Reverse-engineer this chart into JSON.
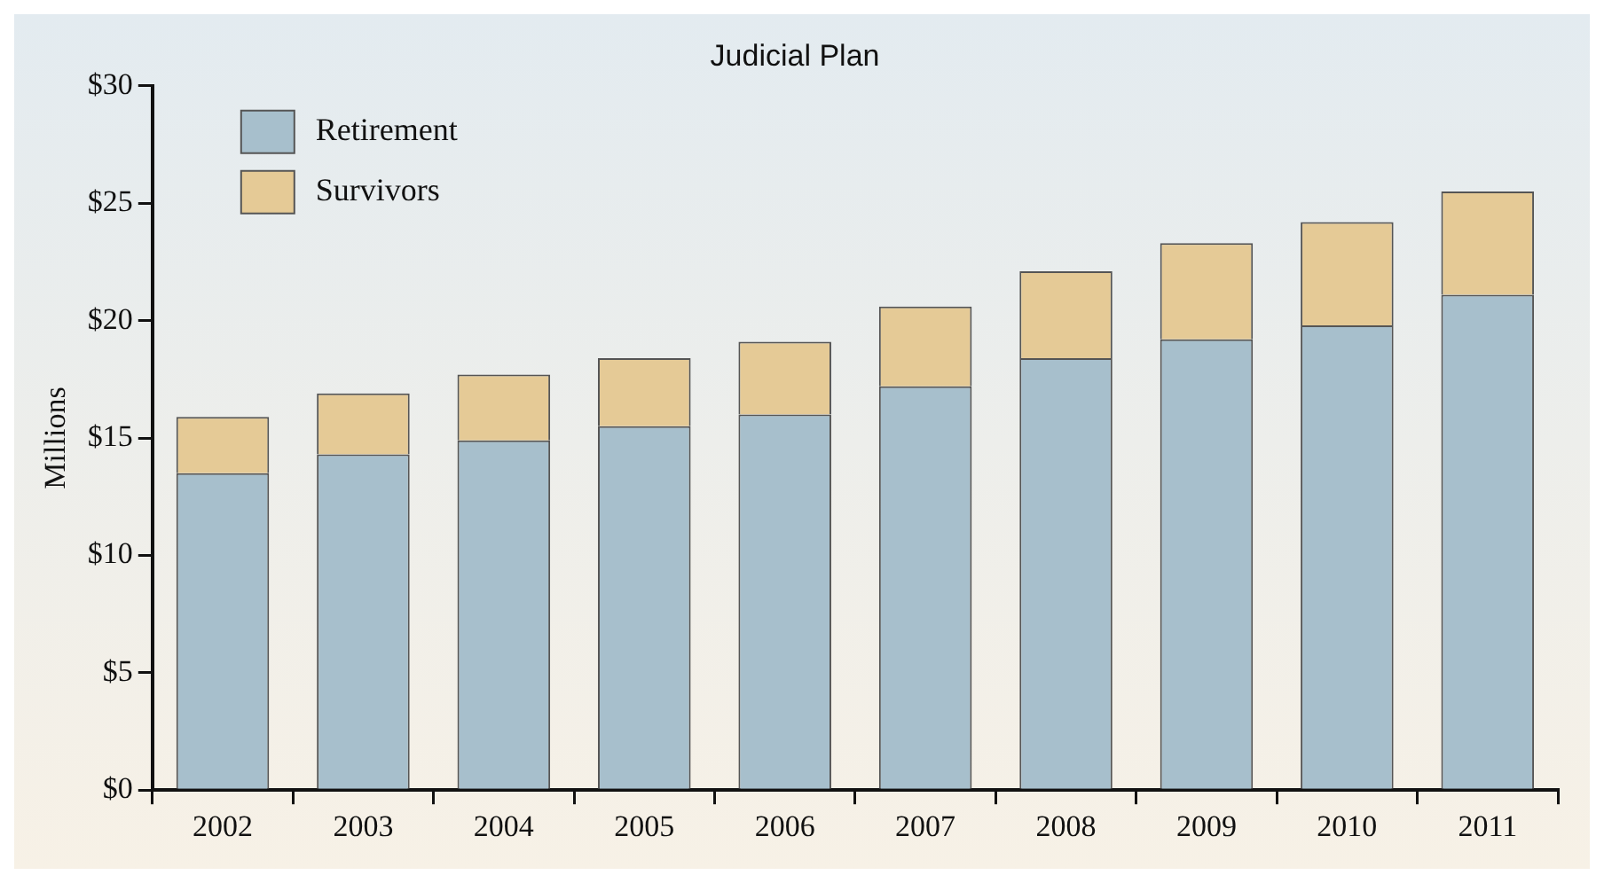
{
  "chart_data": {
    "type": "bar",
    "title": "Judicial Plan",
    "ylabel": "Millions",
    "categories": [
      "2002",
      "2003",
      "2004",
      "2005",
      "2006",
      "2007",
      "2008",
      "2009",
      "2010",
      "2011"
    ],
    "series": [
      {
        "name": "Retirement",
        "color": "#a7bfcc",
        "values": [
          13.5,
          14.3,
          14.9,
          15.5,
          16.0,
          17.2,
          18.4,
          19.2,
          19.8,
          21.1
        ]
      },
      {
        "name": "Survivors",
        "color": "#e5ca96",
        "values": [
          2.4,
          2.6,
          2.8,
          2.9,
          3.1,
          3.4,
          3.7,
          4.1,
          4.4,
          4.4
        ]
      }
    ],
    "stacked": true,
    "ylim": [
      0,
      30
    ],
    "yticks": [
      {
        "value": 0,
        "label": "$0"
      },
      {
        "value": 5,
        "label": "$5"
      },
      {
        "value": 10,
        "label": "$10"
      },
      {
        "value": 15,
        "label": "$15"
      },
      {
        "value": 20,
        "label": "$20"
      },
      {
        "value": 25,
        "label": "$25"
      },
      {
        "value": 30,
        "label": "$30"
      }
    ],
    "grid": false,
    "legend": "top left"
  }
}
